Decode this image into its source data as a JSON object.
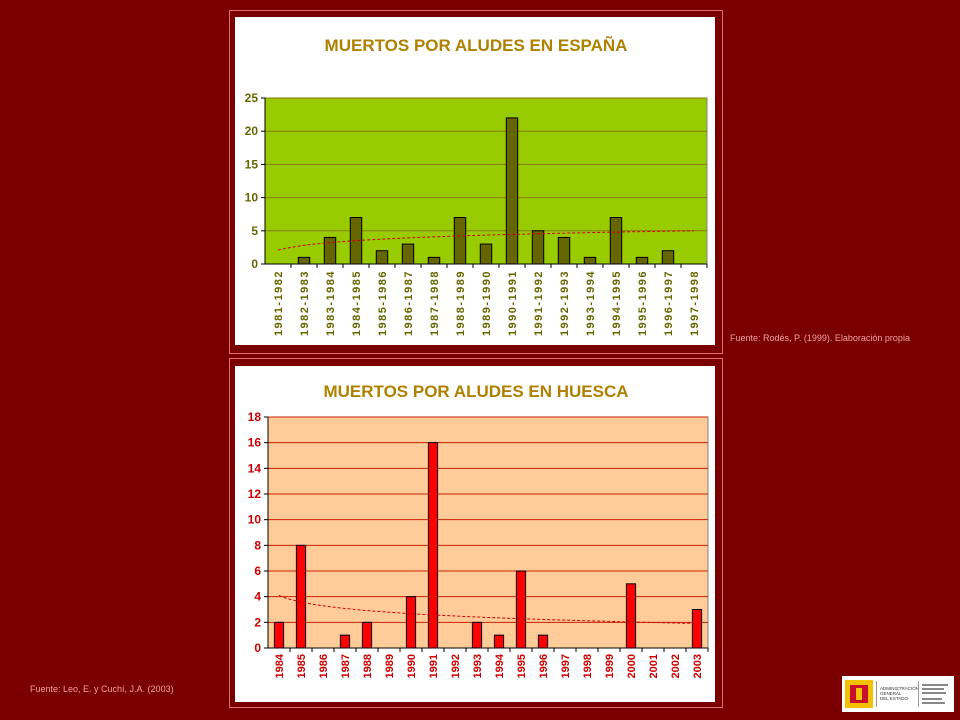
{
  "chart_data": [
    {
      "type": "bar",
      "title": "MUERTOS POR ALUDES EN ESPAÑA",
      "categories": [
        "1981-1982",
        "1982-1983",
        "1983-1984",
        "1984-1985",
        "1985-1986",
        "1986-1987",
        "1987-1988",
        "1988-1989",
        "1989-1990",
        "1990-1991",
        "1991-1992",
        "1992-1993",
        "1993-1994",
        "1994-1995",
        "1995-1996",
        "1996-1997",
        "1997-1998"
      ],
      "values": [
        0,
        1,
        4,
        7,
        2,
        3,
        1,
        7,
        3,
        22,
        5,
        4,
        1,
        7,
        1,
        2,
        0
      ],
      "ylim": [
        0,
        25
      ],
      "yticks": [
        0,
        5,
        10,
        15,
        20,
        25
      ],
      "plot_background": "#99cc00",
      "bar_color": "#666600",
      "trendline": "logarithmic, dashed red",
      "source": "Fuente: Rodés, P. (1999). Elaboración propia"
    },
    {
      "type": "bar",
      "title": "MUERTOS POR ALUDES EN HUESCA",
      "categories": [
        "1984",
        "1985",
        "1986",
        "1987",
        "1988",
        "1989",
        "1990",
        "1991",
        "1992",
        "1993",
        "1994",
        "1995",
        "1996",
        "1997",
        "1998",
        "1999",
        "2000",
        "2001",
        "2002",
        "2003"
      ],
      "values": [
        2,
        8,
        0,
        1,
        2,
        0,
        4,
        16,
        0,
        2,
        1,
        6,
        1,
        0,
        0,
        0,
        5,
        0,
        0,
        3
      ],
      "ylim": [
        0,
        18
      ],
      "yticks": [
        0,
        2,
        4,
        6,
        8,
        10,
        12,
        14,
        16,
        18
      ],
      "plot_background": "#ffcc99",
      "bar_color": "#ff0000",
      "trendline": "logarithmic, dashed red",
      "source": "Fuente: Leo, E. y Cuchí, J.A. (2003)"
    }
  ],
  "logo": {
    "lines": [
      "ADMINISTRACIÓN",
      "GENERAL",
      "DEL ESTADO"
    ]
  },
  "colors": {
    "background": "#7a0000",
    "axis_text_spain": "#666600",
    "axis_text_huesca": "#cc0000",
    "title_text": "#b08000"
  }
}
